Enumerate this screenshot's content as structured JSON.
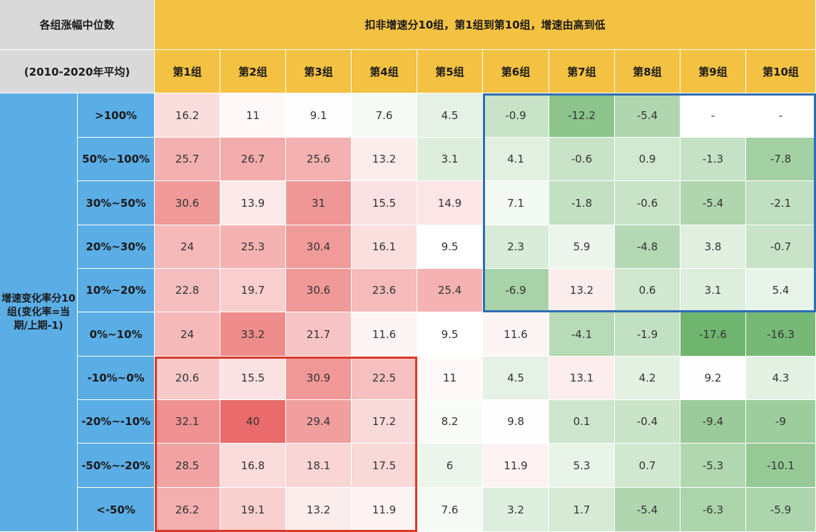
{
  "header": {
    "corner_line1": "各组涨幅中位数",
    "corner_line2": "(2010-2020年平均)",
    "group_title": "扣非增速分10组，第1组到第10组，增速由高到低",
    "row_title": "增速变化率分10组(变化率=当期/上期-1)"
  },
  "colors": {
    "header_yellow": "#F4C242",
    "row_header_blue": "#5BADE5",
    "corner_gray": "#D9D9D9",
    "high_red": "#E96B6B",
    "low_green": "#6FB56F",
    "neutral": "#FFFFFF",
    "frame_blue": "#2E6DB4",
    "frame_red": "#D93A2B"
  },
  "chart_data": {
    "type": "heatmap",
    "title": "扣非增速分10组，第1组到第10组，增速由高到低",
    "x_categories": [
      "第1组",
      "第2组",
      "第3组",
      "第4组",
      "第5组",
      "第6组",
      "第7组",
      "第8组",
      "第9组",
      "第10组"
    ],
    "y_categories": [
      ">100%",
      "50%~100%",
      "30%~50%",
      "20%~30%",
      "10%~20%",
      "0%~10%",
      "-10%~0%",
      "-20%~-10%",
      "-50%~-20%",
      "<-50%"
    ],
    "values": [
      [
        "16.2",
        "11",
        "9.1",
        "7.6",
        "4.5",
        "-0.9",
        "-12.2",
        "-5.4",
        "-",
        "-"
      ],
      [
        "25.7",
        "26.7",
        "25.6",
        "13.2",
        "3.1",
        "4.1",
        "-0.6",
        "0.9",
        "-1.3",
        "-7.8"
      ],
      [
        "30.6",
        "13.9",
        "31",
        "15.5",
        "14.9",
        "7.1",
        "-1.8",
        "-0.6",
        "-5.4",
        "-2.1"
      ],
      [
        "24",
        "25.3",
        "30.4",
        "16.1",
        "9.5",
        "2.3",
        "5.9",
        "-4.8",
        "3.8",
        "-0.7"
      ],
      [
        "22.8",
        "19.7",
        "30.6",
        "23.6",
        "25.4",
        "-6.9",
        "13.2",
        "0.6",
        "3.1",
        "5.4"
      ],
      [
        "24",
        "33.2",
        "21.7",
        "11.6",
        "9.5",
        "11.6",
        "-4.1",
        "-1.9",
        "-17.6",
        "-16.3"
      ],
      [
        "20.6",
        "15.5",
        "30.9",
        "22.5",
        "11",
        "4.5",
        "13.1",
        "4.2",
        "9.2",
        "4.3"
      ],
      [
        "32.1",
        "40",
        "29.4",
        "17.2",
        "8.2",
        "9.8",
        "0.1",
        "-0.4",
        "-9.4",
        "-9"
      ],
      [
        "28.5",
        "16.8",
        "18.1",
        "17.5",
        "6",
        "11.9",
        "5.3",
        "0.7",
        "-5.3",
        "-10.1"
      ],
      [
        "26.2",
        "19.1",
        "13.2",
        "11.9",
        "7.6",
        "3.2",
        "1.7",
        "-5.4",
        "-6.3",
        "-5.9"
      ]
    ],
    "color_scale": {
      "min": -17.6,
      "max": 40,
      "center": 9.5
    },
    "highlight_boxes": [
      {
        "color": "blue",
        "rows": [
          0,
          4
        ],
        "cols": [
          5,
          9
        ]
      },
      {
        "color": "red",
        "rows": [
          6,
          9
        ],
        "cols": [
          0,
          3
        ]
      }
    ]
  }
}
